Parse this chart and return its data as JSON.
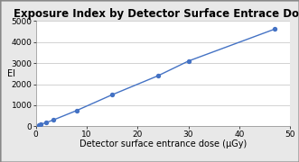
{
  "title": "Exposure Index by Detector Surface Entrace Dose",
  "xlabel": "Detector surface entrance dose (μGy)",
  "ylabel": "EI",
  "x_data": [
    0.5,
    1.0,
    2.0,
    3.5,
    8.0,
    15.0,
    24.0,
    30.0,
    47.0
  ],
  "y_data": [
    50,
    100,
    175,
    310,
    750,
    1500,
    2400,
    3100,
    4620
  ],
  "xlim": [
    0,
    50
  ],
  "ylim": [
    0,
    5000
  ],
  "xticks": [
    0,
    10,
    20,
    30,
    40,
    50
  ],
  "yticks": [
    0,
    1000,
    2000,
    3000,
    4000,
    5000
  ],
  "line_color": "#4472C4",
  "marker_color": "#4472C4",
  "bg_color": "#e8e8e8",
  "plot_bg": "#ffffff",
  "title_fontsize": 8.5,
  "label_fontsize": 7,
  "tick_fontsize": 6.5
}
